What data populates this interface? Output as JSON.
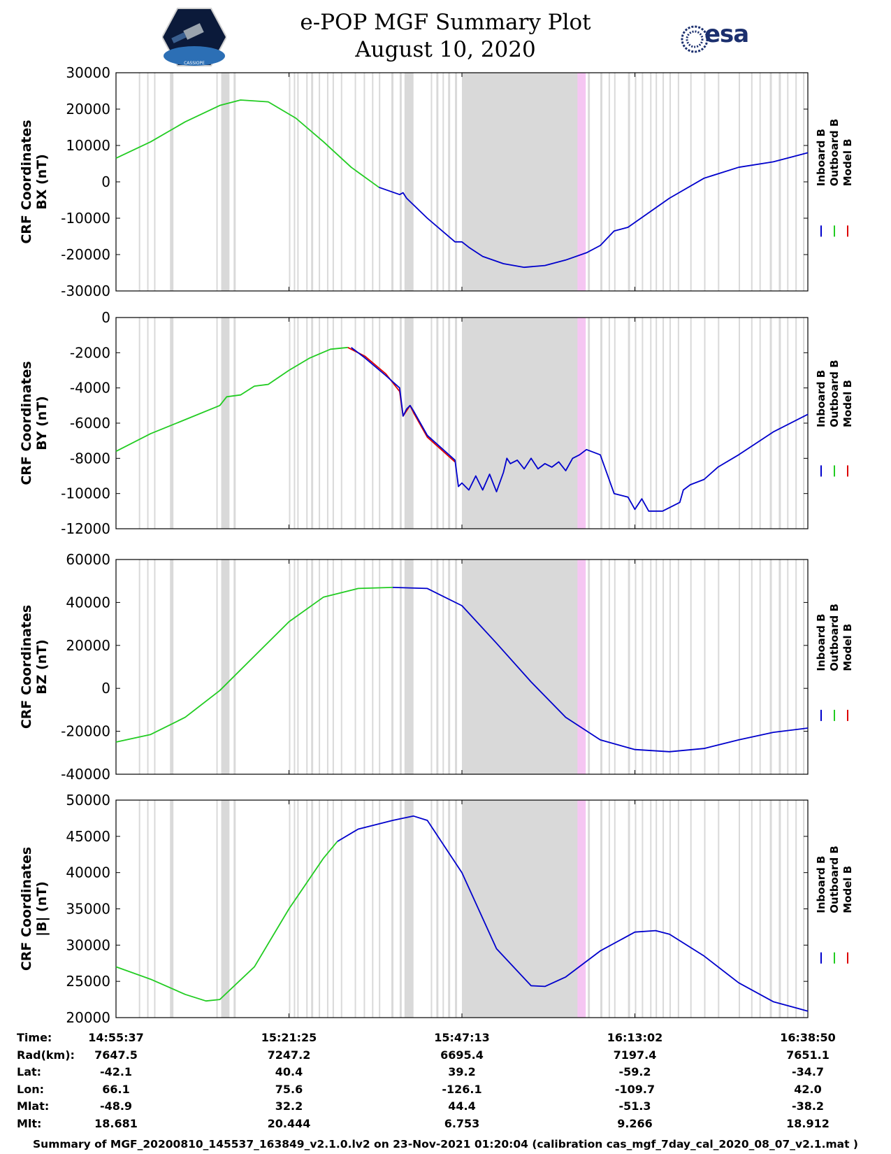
{
  "header": {
    "title_line1": "e-POP MGF Summary Plot",
    "title_line2": "August 10, 2020",
    "left_logo": "cassiope-mission-logo",
    "left_logo_text": "CASSIOPE",
    "right_logo": "esa-logo",
    "right_logo_text": "esa"
  },
  "colors": {
    "inboard": "#0000cc",
    "outboard": "#22cc22",
    "model": "#dd0000",
    "gap_shading": "#d9d9d9",
    "highlight": "#f5c6f2"
  },
  "chart_data": [
    {
      "type": "line",
      "ylabel_line1": "CRF Coordinates",
      "ylabel_line2": "BX (nT)",
      "ylim": [
        -30000,
        30000
      ],
      "yticks": [
        30000,
        20000,
        10000,
        0,
        -10000,
        -20000,
        -30000
      ],
      "legend": [
        "Inboard B",
        "Outboard B",
        "Model B"
      ],
      "series": [
        {
          "name": "Outboard B",
          "color_key": "outboard",
          "x": [
            0,
            0.05,
            0.1,
            0.15,
            0.18,
            0.22,
            0.26,
            0.3,
            0.34,
            0.38
          ],
          "y": [
            6500,
            11000,
            16500,
            21000,
            22500,
            22000,
            17500,
            11000,
            4000,
            -1500
          ]
        },
        {
          "name": "Inboard B",
          "color_key": "inboard",
          "x": [
            0.38,
            0.41,
            0.415,
            0.42,
            0.45,
            0.49,
            0.5,
            0.51,
            0.53,
            0.56,
            0.59,
            0.62,
            0.65,
            0.68,
            0.7,
            0.72,
            0.74,
            0.8,
            0.85,
            0.9,
            0.95,
            1.0
          ],
          "y": [
            -1500,
            -3500,
            -3000,
            -4500,
            -10000,
            -16500,
            -16500,
            -18000,
            -20500,
            -22500,
            -23500,
            -23000,
            -21500,
            -19500,
            -17500,
            -13500,
            -12500,
            -4500,
            1000,
            4000,
            5500,
            8000
          ]
        }
      ]
    },
    {
      "type": "line",
      "ylabel_line1": "CRF Coordinates",
      "ylabel_line2": "BY (nT)",
      "ylim": [
        -12000,
        0
      ],
      "yticks": [
        0,
        -2000,
        -4000,
        -6000,
        -8000,
        -10000,
        -12000
      ],
      "legend": [
        "Inboard B",
        "Outboard B",
        "Model B"
      ],
      "series": [
        {
          "name": "Outboard B",
          "color_key": "outboard",
          "x": [
            0,
            0.05,
            0.1,
            0.15,
            0.16,
            0.18,
            0.2,
            0.22,
            0.25,
            0.28,
            0.31,
            0.335
          ],
          "y": [
            -7600,
            -6600,
            -5800,
            -5000,
            -4500,
            -4400,
            -3900,
            -3800,
            -3000,
            -2300,
            -1800,
            -1700
          ]
        },
        {
          "name": "Model B",
          "color_key": "model",
          "x": [
            0.335,
            0.36,
            0.39,
            0.41,
            0.415,
            0.42,
            0.425,
            0.43,
            0.45,
            0.49
          ],
          "y": [
            -1700,
            -2200,
            -3200,
            -4200,
            -5600,
            -5300,
            -5000,
            -5400,
            -6800,
            -8200
          ]
        },
        {
          "name": "Inboard B",
          "color_key": "inboard",
          "x": [
            0.34,
            0.36,
            0.39,
            0.41,
            0.415,
            0.42,
            0.425,
            0.43,
            0.45,
            0.49,
            0.495,
            0.5,
            0.51,
            0.52,
            0.53,
            0.54,
            0.55,
            0.56,
            0.565,
            0.57,
            0.58,
            0.59,
            0.6,
            0.61,
            0.62,
            0.63,
            0.64,
            0.65,
            0.66,
            0.67,
            0.68,
            0.7,
            0.72,
            0.74,
            0.75,
            0.76,
            0.77,
            0.79,
            0.8,
            0.815,
            0.82,
            0.83,
            0.85,
            0.87,
            0.9,
            0.95,
            1.0
          ],
          "y": [
            -1700,
            -2300,
            -3300,
            -4000,
            -5600,
            -5200,
            -5000,
            -5300,
            -6700,
            -8100,
            -9600,
            -9400,
            -9800,
            -9000,
            -9800,
            -8900,
            -9900,
            -8800,
            -8000,
            -8300,
            -8100,
            -8600,
            -8000,
            -8600,
            -8300,
            -8500,
            -8200,
            -8700,
            -8000,
            -7800,
            -7500,
            -7800,
            -10000,
            -10200,
            -10900,
            -10300,
            -11000,
            -11000,
            -10800,
            -10500,
            -9800,
            -9500,
            -9200,
            -8500,
            -7800,
            -6500,
            -5500
          ]
        }
      ]
    },
    {
      "type": "line",
      "ylabel_line1": "CRF Coordinates",
      "ylabel_line2": "BZ (nT)",
      "ylim": [
        -40000,
        60000
      ],
      "yticks": [
        60000,
        40000,
        20000,
        0,
        -20000,
        -40000
      ],
      "legend": [
        "Inboard B",
        "Outboard B",
        "Model B"
      ],
      "series": [
        {
          "name": "Outboard B",
          "color_key": "outboard",
          "x": [
            0,
            0.05,
            0.1,
            0.15,
            0.2,
            0.25,
            0.3,
            0.35,
            0.4
          ],
          "y": [
            -25000,
            -21500,
            -13500,
            -1000,
            15000,
            31000,
            42500,
            46500,
            47000
          ]
        },
        {
          "name": "Inboard B",
          "color_key": "inboard",
          "x": [
            0.4,
            0.45,
            0.5,
            0.55,
            0.6,
            0.65,
            0.7,
            0.75,
            0.8,
            0.85,
            0.9,
            0.95,
            1.0
          ],
          "y": [
            47000,
            46500,
            38500,
            21000,
            3000,
            -13500,
            -24000,
            -28500,
            -29500,
            -28000,
            -24000,
            -20500,
            -18500
          ]
        }
      ]
    },
    {
      "type": "line",
      "ylabel_line1": "CRF Coordinates",
      "ylabel_line2": "|B| (nT)",
      "ylim": [
        20000,
        50000
      ],
      "yticks": [
        50000,
        45000,
        40000,
        35000,
        30000,
        25000,
        20000
      ],
      "legend": [
        "Inboard B",
        "Outboard B",
        "Model B"
      ],
      "series": [
        {
          "name": "Outboard B",
          "color_key": "outboard",
          "x": [
            0,
            0.05,
            0.1,
            0.13,
            0.15,
            0.2,
            0.25,
            0.3,
            0.32
          ],
          "y": [
            27000,
            25300,
            23200,
            22300,
            22500,
            27000,
            35000,
            42000,
            44300
          ]
        },
        {
          "name": "Inboard B",
          "color_key": "inboard",
          "x": [
            0.32,
            0.35,
            0.4,
            0.43,
            0.45,
            0.5,
            0.55,
            0.6,
            0.62,
            0.65,
            0.7,
            0.75,
            0.78,
            0.8,
            0.85,
            0.9,
            0.95,
            1.0
          ],
          "y": [
            44300,
            46000,
            47200,
            47800,
            47200,
            40000,
            29500,
            24400,
            24300,
            25600,
            29200,
            31800,
            32000,
            31500,
            28500,
            24800,
            22200,
            20900
          ]
        }
      ]
    }
  ],
  "gaps": {
    "bars": [
      [
        0.033,
        0.002
      ],
      [
        0.045,
        0.002
      ],
      [
        0.055,
        0.002
      ],
      [
        0.078,
        0.005
      ],
      [
        0.145,
        0.002
      ],
      [
        0.152,
        0.012
      ],
      [
        0.17,
        0.003
      ],
      [
        0.25,
        0.002
      ],
      [
        0.257,
        0.002
      ],
      [
        0.262,
        0.002
      ],
      [
        0.275,
        0.002
      ],
      [
        0.282,
        0.003
      ],
      [
        0.293,
        0.002
      ],
      [
        0.305,
        0.002
      ],
      [
        0.313,
        0.002
      ],
      [
        0.325,
        0.002
      ],
      [
        0.345,
        0.002
      ],
      [
        0.358,
        0.002
      ],
      [
        0.37,
        0.002
      ],
      [
        0.38,
        0.002
      ],
      [
        0.398,
        0.003
      ],
      [
        0.41,
        0.003
      ],
      [
        0.417,
        0.013
      ],
      [
        0.455,
        0.002
      ],
      [
        0.463,
        0.003
      ],
      [
        0.472,
        0.002
      ],
      [
        0.48,
        0.003
      ],
      [
        0.49,
        0.003
      ],
      [
        0.5,
        0.175
      ],
      [
        0.682,
        0.003
      ],
      [
        0.7,
        0.003
      ],
      [
        0.712,
        0.002
      ],
      [
        0.72,
        0.002
      ],
      [
        0.74,
        0.003
      ],
      [
        0.75,
        0.002
      ],
      [
        0.76,
        0.002
      ],
      [
        0.772,
        0.002
      ],
      [
        0.78,
        0.002
      ],
      [
        0.79,
        0.002
      ],
      [
        0.8,
        0.002
      ],
      [
        0.812,
        0.002
      ],
      [
        0.83,
        0.002
      ],
      [
        0.85,
        0.002
      ],
      [
        0.87,
        0.002
      ],
      [
        0.9,
        0.002
      ],
      [
        0.918,
        0.002
      ],
      [
        0.93,
        0.002
      ],
      [
        0.945,
        0.003
      ],
      [
        0.958,
        0.003
      ],
      [
        0.97,
        0.002
      ],
      [
        0.982,
        0.002
      ],
      [
        0.993,
        0.002
      ]
    ],
    "highlight": [
      0.667,
      0.012
    ]
  },
  "time_axis": {
    "ticks": [
      0,
      0.25,
      0.5,
      0.75,
      1.0
    ]
  },
  "ephemeris": {
    "labels": [
      "Time:",
      "Rad(km):",
      "Lat:",
      "Lon:",
      "Mlat:",
      "Mlt:"
    ],
    "columns": [
      [
        "14:55:37",
        "7647.5",
        "-42.1",
        "66.1",
        "-48.9",
        "18.681"
      ],
      [
        "15:21:25",
        "7247.2",
        "40.4",
        "75.6",
        "32.2",
        "20.444"
      ],
      [
        "15:47:13",
        "6695.4",
        "39.2",
        "-126.1",
        "44.4",
        "6.753"
      ],
      [
        "16:13:02",
        "7197.4",
        "-59.2",
        "-109.7",
        "-51.3",
        "9.266"
      ],
      [
        "16:38:50",
        "7651.1",
        "-34.7",
        "42.0",
        "-38.2",
        "18.912"
      ]
    ]
  },
  "footer": "Summary of MGF_20200810_145537_163849_v2.1.0.lv2 on 23-Nov-2021 01:20:04 (calibration cas_mgf_7day_cal_2020_08_07_v2.1.mat )"
}
